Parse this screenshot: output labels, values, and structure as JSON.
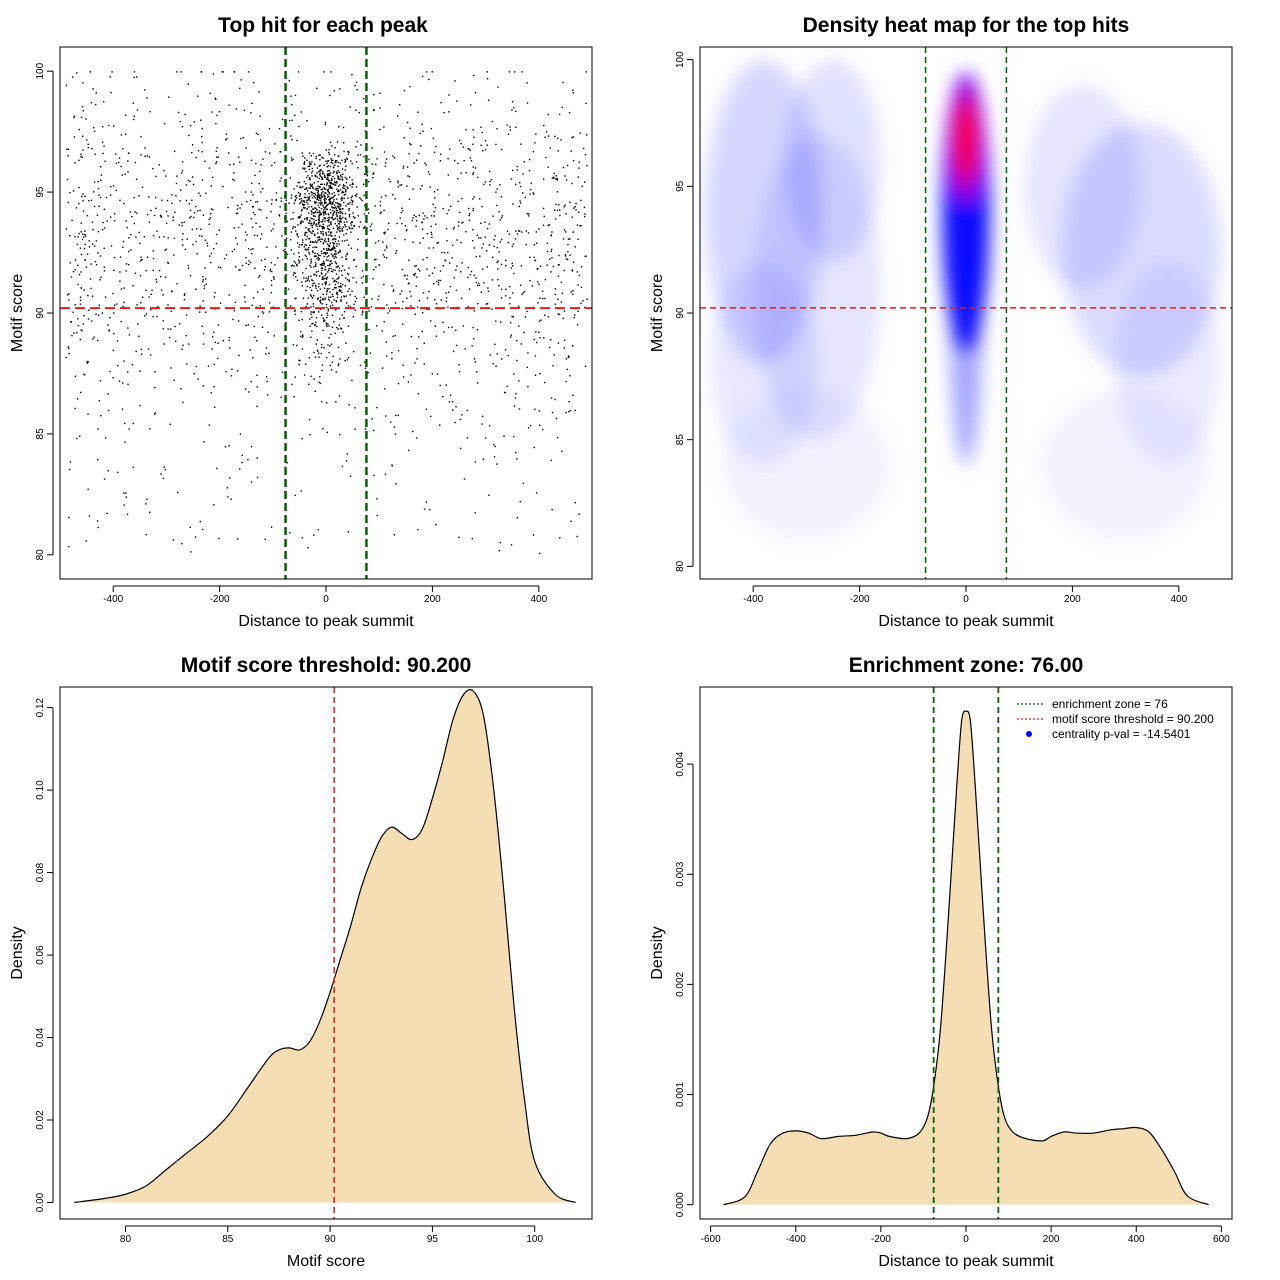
{
  "chart_data": [
    {
      "type": "scatter",
      "title": "Top hit for each peak",
      "xlabel": "Distance to peak summit",
      "ylabel": "Motif score",
      "xlim": [
        -500,
        500
      ],
      "ylim": [
        79,
        101
      ],
      "xticks": [
        -400,
        -200,
        0,
        200,
        400
      ],
      "yticks": [
        80,
        85,
        90,
        95,
        100
      ],
      "vlines": [
        -76,
        76
      ],
      "hline": 90.2,
      "points_summary": {
        "n_points_approx": 3000,
        "central_cluster": {
          "x_mean": 0,
          "x_sd": 28,
          "y_range": [
            85,
            100
          ],
          "fraction": 0.35
        },
        "background": {
          "x_range": [
            -490,
            490
          ],
          "y_range": [
            80,
            100
          ],
          "y_mode": 93,
          "fraction": 0.65
        }
      },
      "vline_color": "#006400",
      "hline_color": "#e41a1c"
    },
    {
      "type": "heatmap",
      "title": "Density heat map for the top hits",
      "xlabel": "Distance to peak summit",
      "ylabel": "Motif score",
      "xlim": [
        -500,
        500
      ],
      "ylim": [
        79.5,
        100.5
      ],
      "xticks": [
        -400,
        -200,
        0,
        200,
        400
      ],
      "yticks": [
        80,
        85,
        90,
        95,
        100
      ],
      "vlines": [
        -76,
        76
      ],
      "hline": 90.2,
      "hot_spot": {
        "x": 0,
        "y": 96.8
      },
      "color_scale": [
        "#ffffff",
        "#0000ff",
        "#ff0000"
      ]
    },
    {
      "type": "area",
      "title": "Motif score threshold: 90.200",
      "xlabel": "Motif score",
      "ylabel": "Density",
      "xlim": [
        76.8,
        102.8
      ],
      "ylim": [
        -0.004,
        0.125
      ],
      "xticks": [
        80,
        85,
        90,
        95,
        100
      ],
      "yticks": [
        0.0,
        0.02,
        0.04,
        0.06,
        0.08,
        0.1,
        0.12
      ],
      "ytick_labels": [
        "0.00",
        "0.02",
        "0.04",
        "0.06",
        "0.08",
        "0.10",
        "0.12"
      ],
      "vline": 90.2,
      "fill": "#f5deb3",
      "x": [
        77.5,
        79,
        80,
        81,
        82,
        83,
        84,
        85,
        86,
        87,
        87.5,
        88,
        88.5,
        89,
        89.5,
        90,
        90.5,
        91,
        91.5,
        92,
        92.5,
        93,
        93.5,
        94,
        94.5,
        95,
        95.5,
        96,
        96.5,
        97,
        97.5,
        98,
        98.5,
        99,
        99.5,
        100,
        101,
        102
      ],
      "y": [
        0.0,
        0.001,
        0.002,
        0.004,
        0.008,
        0.012,
        0.016,
        0.021,
        0.028,
        0.035,
        0.037,
        0.0375,
        0.037,
        0.039,
        0.044,
        0.051,
        0.059,
        0.067,
        0.076,
        0.083,
        0.0885,
        0.091,
        0.0895,
        0.088,
        0.0905,
        0.098,
        0.107,
        0.117,
        0.123,
        0.124,
        0.118,
        0.1,
        0.075,
        0.047,
        0.025,
        0.01,
        0.002,
        0.0
      ]
    },
    {
      "type": "area",
      "title": "Enrichment zone: 76.00",
      "xlabel": "Distance to peak summit",
      "ylabel": "Density",
      "xlim": [
        -625,
        625
      ],
      "ylim": [
        -0.00013,
        0.0047
      ],
      "xticks": [
        -600,
        -400,
        -200,
        0,
        200,
        400,
        600
      ],
      "yticks": [
        0.0,
        0.001,
        0.002,
        0.003,
        0.004
      ],
      "ytick_labels": [
        "0.000",
        "0.001",
        "0.002",
        "0.003",
        "0.004"
      ],
      "vlines": [
        -76,
        76
      ],
      "fill": "#f5deb3",
      "x": [
        -570,
        -520,
        -490,
        -460,
        -430,
        -400,
        -370,
        -340,
        -300,
        -260,
        -220,
        -200,
        -180,
        -140,
        -110,
        -90,
        -75,
        -60,
        -45,
        -30,
        -20,
        -10,
        0,
        10,
        20,
        30,
        45,
        60,
        75,
        90,
        110,
        140,
        180,
        200,
        230,
        260,
        300,
        340,
        370,
        400,
        430,
        460,
        490,
        520,
        570
      ],
      "y": [
        0.0,
        7e-05,
        0.0003,
        0.00055,
        0.00065,
        0.00067,
        0.00065,
        0.0006,
        0.00062,
        0.00063,
        0.00066,
        0.00065,
        0.00062,
        0.0006,
        0.00065,
        0.0008,
        0.0011,
        0.0016,
        0.0024,
        0.0033,
        0.0039,
        0.0044,
        0.00448,
        0.0044,
        0.0039,
        0.0033,
        0.0024,
        0.0016,
        0.0011,
        0.0008,
        0.00066,
        0.0006,
        0.00058,
        0.00062,
        0.00066,
        0.00065,
        0.00065,
        0.00068,
        0.00069,
        0.0007,
        0.00066,
        0.0005,
        0.0003,
        8e-05,
        0.0
      ],
      "legend": {
        "position": "top-right",
        "entries": [
          "enrichment zone = 76",
          "motif score threshold = 90.200",
          "centrality p-val = -14.5401"
        ],
        "colors": [
          "#006400",
          "#e41a1c",
          "#0000ff"
        ]
      }
    }
  ]
}
